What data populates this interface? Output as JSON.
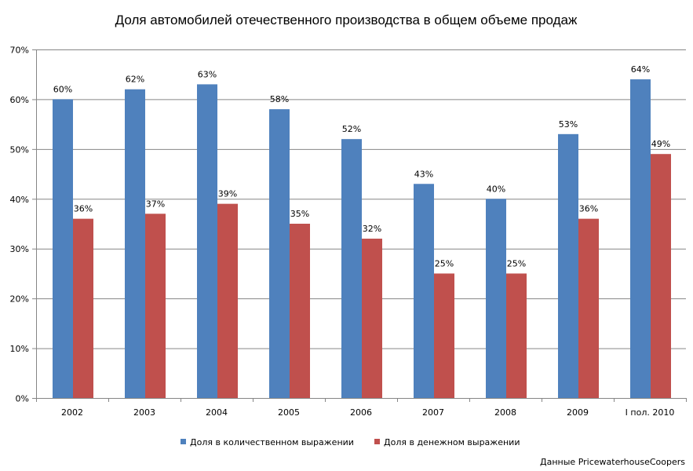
{
  "chart_data": {
    "type": "bar",
    "title": "Доля автомобилей отечественного производства в общем объеме продаж",
    "categories": [
      "2002",
      "2003",
      "2004",
      "2005",
      "2006",
      "2007",
      "2008",
      "2009",
      "I пол. 2010"
    ],
    "series": [
      {
        "name": "Доля в количественном выражении",
        "color": "#4F81BD",
        "values": [
          60,
          62,
          63,
          58,
          52,
          43,
          40,
          53,
          64
        ],
        "labels": [
          "60%",
          "62%",
          "63%",
          "58%",
          "52%",
          "43%",
          "40%",
          "53%",
          "64%"
        ]
      },
      {
        "name": "Доля в денежном выражении",
        "color": "#C0504D",
        "values": [
          36,
          37,
          39,
          35,
          32,
          25,
          25,
          36,
          49
        ],
        "labels": [
          "36%",
          "37%",
          "39%",
          "35%",
          "32%",
          "25%",
          "25%",
          "36%",
          "49%"
        ]
      }
    ],
    "ylim": [
      0,
      70
    ],
    "yticks": [
      0,
      10,
      20,
      30,
      40,
      50,
      60,
      70
    ],
    "ytick_labels": [
      "0%",
      "10%",
      "20%",
      "30%",
      "40%",
      "50%",
      "60%",
      "70%"
    ],
    "grid": true,
    "legend_position": "bottom",
    "source_note": "Данные PricewaterhouseCoopers"
  }
}
